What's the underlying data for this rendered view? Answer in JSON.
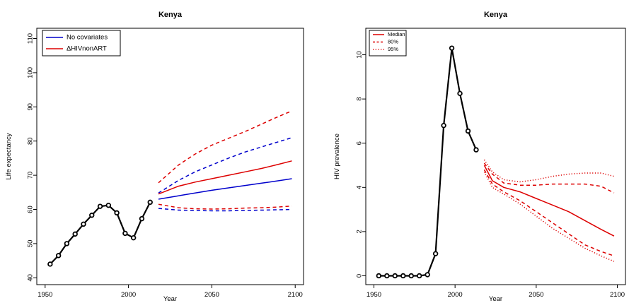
{
  "chart_data": [
    {
      "type": "line",
      "title": "Kenya",
      "xlabel": "Year",
      "ylabel": "Life expectancy",
      "xlim": [
        1945,
        2105
      ],
      "ylim": [
        38,
        113
      ],
      "xticks": [
        "1950",
        "2000",
        "2050",
        "2100"
      ],
      "yticks": [
        "40",
        "50",
        "60",
        "70",
        "80",
        "90",
        "100",
        "110"
      ],
      "grid": false,
      "legend_position": "top-left",
      "legend": [
        {
          "name": "No covariates",
          "color": "#0000cc"
        },
        {
          "name": "ΔHIVnonART",
          "color": "#dd0000"
        }
      ],
      "observed": {
        "color": "#000000",
        "x": [
          1953,
          1958,
          1963,
          1968,
          1973,
          1978,
          1983,
          1988,
          1993,
          1998,
          2003,
          2008,
          2013
        ],
        "y": [
          44.0,
          46.5,
          50.0,
          52.8,
          55.7,
          58.3,
          60.9,
          61.2,
          59.0,
          53.0,
          51.7,
          57.3,
          62.1
        ]
      },
      "series": [
        {
          "legend_ref": 0,
          "band": "median",
          "style": "solid",
          "color": "#0000cc",
          "x": [
            2018,
            2030,
            2040,
            2050,
            2060,
            2070,
            2080,
            2090,
            2098
          ],
          "y": [
            63.0,
            64.0,
            64.8,
            65.6,
            66.3,
            67.0,
            67.7,
            68.4,
            69.0
          ]
        },
        {
          "legend_ref": 0,
          "band": "upper",
          "style": "dashed",
          "color": "#0000cc",
          "x": [
            2018,
            2030,
            2040,
            2050,
            2060,
            2070,
            2080,
            2090,
            2098
          ],
          "y": [
            64.8,
            68.5,
            71.0,
            73.0,
            75.0,
            76.8,
            78.3,
            79.8,
            81.0
          ]
        },
        {
          "legend_ref": 0,
          "band": "lower",
          "style": "dashed",
          "color": "#0000cc",
          "x": [
            2018,
            2030,
            2040,
            2050,
            2060,
            2070,
            2080,
            2090,
            2098
          ],
          "y": [
            60.3,
            59.8,
            59.7,
            59.6,
            59.6,
            59.7,
            59.8,
            59.9,
            60.0
          ]
        },
        {
          "legend_ref": 1,
          "band": "median",
          "style": "solid",
          "color": "#dd0000",
          "x": [
            2018,
            2030,
            2040,
            2050,
            2060,
            2070,
            2080,
            2090,
            2098
          ],
          "y": [
            64.5,
            66.8,
            68.0,
            69.0,
            70.0,
            71.0,
            72.0,
            73.2,
            74.2
          ]
        },
        {
          "legend_ref": 1,
          "band": "upper",
          "style": "dashed",
          "color": "#dd0000",
          "x": [
            2018,
            2030,
            2040,
            2050,
            2060,
            2070,
            2080,
            2090,
            2098
          ],
          "y": [
            67.8,
            73.0,
            76.2,
            78.8,
            80.8,
            82.8,
            85.0,
            87.2,
            88.8
          ]
        },
        {
          "legend_ref": 1,
          "band": "lower",
          "style": "dashed",
          "color": "#dd0000",
          "x": [
            2018,
            2030,
            2040,
            2050,
            2060,
            2070,
            2080,
            2090,
            2098
          ],
          "y": [
            61.5,
            60.5,
            60.2,
            60.1,
            60.2,
            60.4,
            60.5,
            60.7,
            61.0
          ]
        }
      ]
    },
    {
      "type": "line",
      "title": "Kenya",
      "xlabel": "Year",
      "ylabel": "HIV prevalence",
      "xlim": [
        1945,
        2105
      ],
      "ylim": [
        -0.4,
        11.2
      ],
      "xticks": [
        "1950",
        "2000",
        "2050",
        "2100"
      ],
      "yticks": [
        "0",
        "2",
        "4",
        "6",
        "8",
        "10"
      ],
      "grid": false,
      "legend_position": "top-left",
      "legend": [
        {
          "name": "Median",
          "style": "solid",
          "color": "#dd0000"
        },
        {
          "name": "80%",
          "style": "dashed",
          "color": "#dd0000"
        },
        {
          "name": "95%",
          "style": "dotted",
          "color": "#dd0000"
        }
      ],
      "observed": {
        "color": "#000000",
        "x": [
          1953,
          1958,
          1963,
          1968,
          1973,
          1978,
          1983,
          1988,
          1993,
          1998,
          2003,
          2008,
          2013
        ],
        "y": [
          0.0,
          0.0,
          0.0,
          0.0,
          0.0,
          0.0,
          0.05,
          1.0,
          6.8,
          10.3,
          8.25,
          6.55,
          5.7
        ]
      },
      "series": [
        {
          "legend_ref": 0,
          "style": "solid",
          "color": "#dd0000",
          "x": [
            2018,
            2023,
            2030,
            2040,
            2050,
            2060,
            2070,
            2080,
            2090,
            2098
          ],
          "y": [
            5.0,
            4.3,
            4.0,
            3.8,
            3.5,
            3.2,
            2.9,
            2.5,
            2.1,
            1.8
          ]
        },
        {
          "legend_ref": 1,
          "style": "dashed",
          "color": "#dd0000",
          "x": [
            2018,
            2023,
            2030,
            2040,
            2050,
            2060,
            2070,
            2080,
            2090,
            2098
          ],
          "y": [
            5.1,
            4.6,
            4.2,
            4.1,
            4.1,
            4.15,
            4.15,
            4.15,
            4.05,
            3.75
          ]
        },
        {
          "legend_ref": 1,
          "style": "dashed",
          "color": "#dd0000",
          "x": [
            2018,
            2023,
            2030,
            2040,
            2050,
            2060,
            2070,
            2080,
            2090,
            2098
          ],
          "y": [
            4.8,
            4.15,
            3.8,
            3.4,
            2.9,
            2.4,
            1.9,
            1.4,
            1.1,
            0.9
          ]
        },
        {
          "legend_ref": 2,
          "style": "dotted",
          "color": "#dd0000",
          "x": [
            2018,
            2023,
            2030,
            2040,
            2050,
            2060,
            2070,
            2080,
            2090,
            2098
          ],
          "y": [
            5.25,
            4.7,
            4.35,
            4.25,
            4.35,
            4.5,
            4.6,
            4.65,
            4.65,
            4.5
          ]
        },
        {
          "legend_ref": 2,
          "style": "dotted",
          "color": "#dd0000",
          "x": [
            2018,
            2023,
            2030,
            2040,
            2050,
            2060,
            2070,
            2080,
            2090,
            2098
          ],
          "y": [
            4.7,
            4.0,
            3.7,
            3.25,
            2.7,
            2.15,
            1.7,
            1.25,
            0.9,
            0.65
          ]
        }
      ]
    }
  ]
}
